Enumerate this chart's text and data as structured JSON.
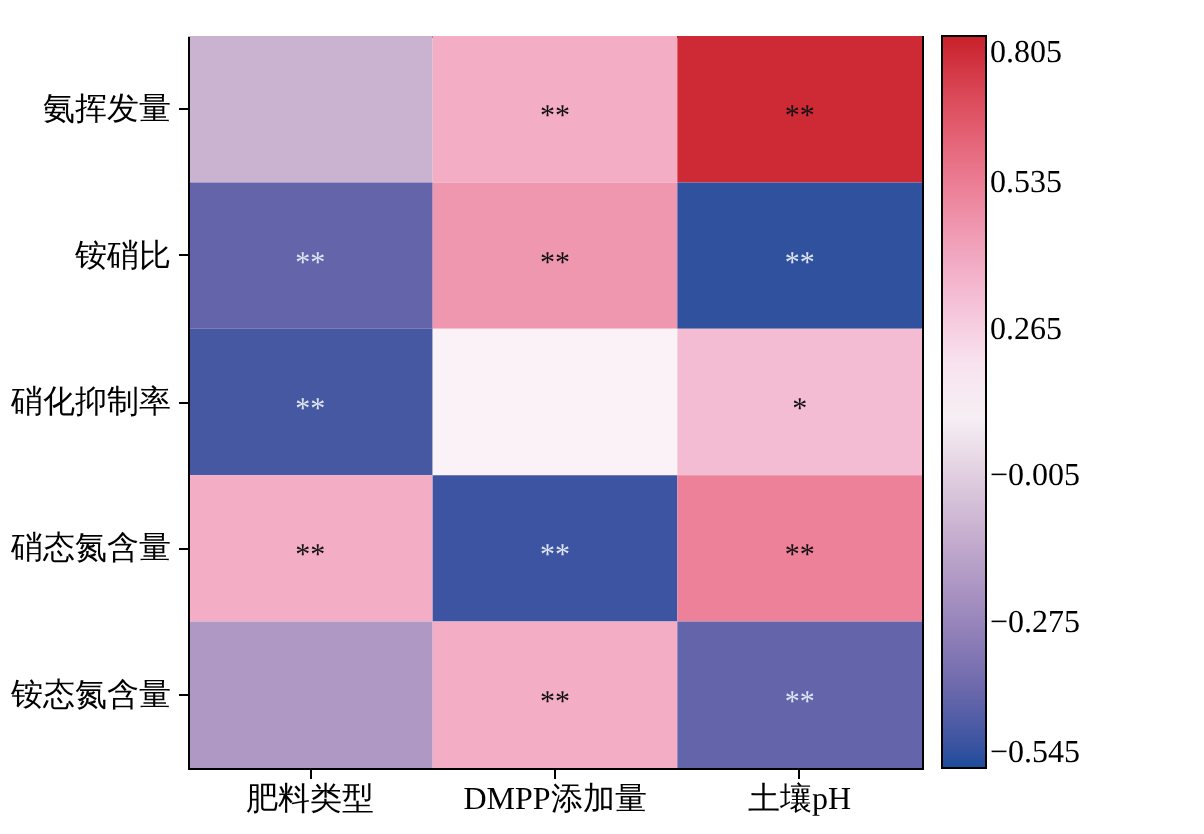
{
  "chart_data": {
    "type": "heatmap",
    "categories": [
      "肥料类型",
      "DMPP添加量",
      "土壤pH"
    ],
    "y_categories": [
      "氨挥发量",
      "铵硝比",
      "硝化抑制率",
      "硝态氮含量",
      "铵态氮含量"
    ],
    "cells": [
      [
        -0.1,
        0.38,
        0.78
      ],
      [
        -0.42,
        0.45,
        -0.52
      ],
      [
        -0.48,
        0.15,
        0.33
      ],
      [
        0.38,
        -0.5,
        0.52
      ],
      [
        -0.2,
        0.38,
        -0.42
      ]
    ],
    "cell_labels": [
      [
        null,
        "**",
        "**"
      ],
      [
        "**",
        "**",
        "**"
      ],
      [
        "**",
        null,
        "*"
      ],
      [
        "**",
        "**",
        "**"
      ],
      [
        null,
        "**",
        "**"
      ]
    ],
    "clim": [
      -0.545,
      0.805
    ],
    "cticks": [
      0.805,
      0.535,
      0.265,
      -0.005,
      -0.275,
      -0.545
    ]
  }
}
